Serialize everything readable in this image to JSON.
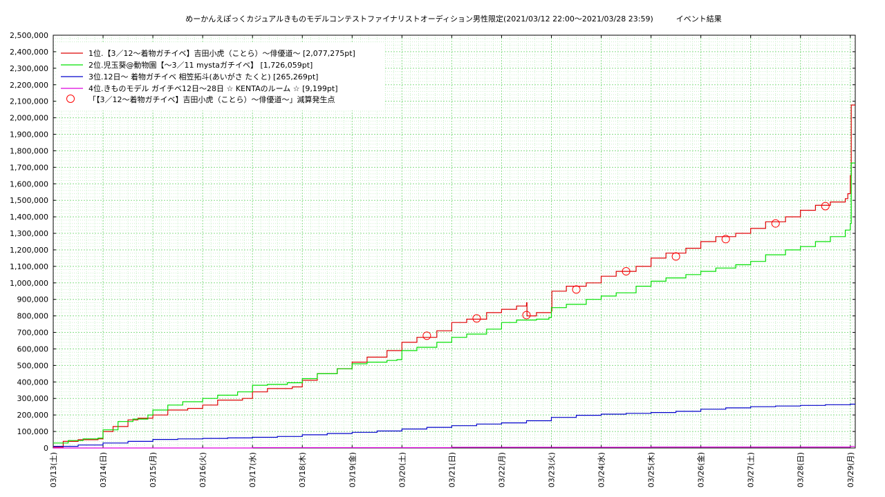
{
  "chart_data": {
    "type": "line",
    "title": "めーかんえぽっくカジュアルきものモデルコンテストファイナリストオーディション男性限定(2021/03/12 22:00〜2021/03/28 23:59)　　　イベント結果",
    "xlabel": "",
    "ylabel": "",
    "x_ticks": [
      "03/13(土)",
      "03/14(日)",
      "03/15(月)",
      "03/16(火)",
      "03/17(水)",
      "03/18(木)",
      "03/19(金)",
      "03/20(土)",
      "03/21(日)",
      "03/22(月)",
      "03/23(火)",
      "03/24(水)",
      "03/25(木)",
      "03/26(金)",
      "03/27(土)",
      "03/28(日)",
      "03/29(月)"
    ],
    "x_range_days": [
      0,
      16.1
    ],
    "ylim": [
      0,
      2500000
    ],
    "y_ticks": [
      "0",
      "100,000",
      "200,000",
      "300,000",
      "400,000",
      "500,000",
      "600,000",
      "700,000",
      "800,000",
      "900,000",
      "1,000,000",
      "1,100,000",
      "1,200,000",
      "1,300,000",
      "1,400,000",
      "1,500,000",
      "1,600,000",
      "1,700,000",
      "1,800,000",
      "1,900,000",
      "2,000,000",
      "2,100,000",
      "2,200,000",
      "2,300,000",
      "2,400,000",
      "2,500,000"
    ],
    "grid": true,
    "legend_position": "top-left",
    "series": [
      {
        "name": "1位.【3／12〜着物ガチイベ】吉田小虎（ことら）〜俳優道〜 [2,077,275pt]",
        "color": "#dd0000",
        "x": [
          0,
          0.2,
          0.5,
          0.9,
          1.0,
          1.2,
          1.5,
          1.7,
          2.0,
          2.3,
          2.7,
          3.0,
          3.3,
          3.8,
          4.0,
          4.3,
          4.8,
          5.0,
          5.3,
          5.7,
          6.0,
          6.3,
          6.7,
          7.0,
          7.3,
          7.7,
          8.0,
          8.3,
          8.7,
          9.0,
          9.3,
          9.5,
          9.51,
          9.7,
          10.0,
          10.01,
          10.3,
          10.7,
          11.0,
          11.3,
          11.7,
          12.0,
          12.3,
          12.7,
          13.0,
          13.3,
          13.7,
          14.0,
          14.3,
          14.7,
          15.0,
          15.3,
          15.6,
          15.9,
          15.95,
          16.0,
          16.02,
          16.1
        ],
        "y": [
          5000,
          40000,
          50000,
          55000,
          100000,
          130000,
          170000,
          180000,
          200000,
          230000,
          240000,
          260000,
          290000,
          300000,
          340000,
          360000,
          370000,
          410000,
          450000,
          480000,
          520000,
          550000,
          590000,
          640000,
          670000,
          710000,
          760000,
          780000,
          820000,
          840000,
          860000,
          880000,
          800000,
          820000,
          830000,
          950000,
          980000,
          1000000,
          1040000,
          1070000,
          1100000,
          1150000,
          1180000,
          1210000,
          1250000,
          1280000,
          1300000,
          1330000,
          1370000,
          1400000,
          1440000,
          1470000,
          1490000,
          1510000,
          1540000,
          1650000,
          2077275,
          2077275
        ]
      },
      {
        "name": "2位.児玉葵@動物園【〜3／11 mystaガチイベ】 [1,726,059pt]",
        "color": "#00e000",
        "x": [
          0,
          0.3,
          0.6,
          0.9,
          1.0,
          1.3,
          1.6,
          1.9,
          2.0,
          2.3,
          2.6,
          3.0,
          3.3,
          3.7,
          4.0,
          4.3,
          4.7,
          5.0,
          5.3,
          5.7,
          6.0,
          6.3,
          6.7,
          6.9,
          7.0,
          7.3,
          7.7,
          8.0,
          8.3,
          8.7,
          9.0,
          9.3,
          9.7,
          9.95,
          10.0,
          10.3,
          10.7,
          11.0,
          11.3,
          11.7,
          12.0,
          12.3,
          12.7,
          13.0,
          13.3,
          13.7,
          14.0,
          14.3,
          14.7,
          15.0,
          15.3,
          15.6,
          15.9,
          16.0,
          16.02,
          16.1
        ],
        "y": [
          30000,
          45000,
          55000,
          60000,
          110000,
          160000,
          175000,
          200000,
          230000,
          260000,
          280000,
          300000,
          320000,
          340000,
          380000,
          385000,
          395000,
          420000,
          450000,
          480000,
          510000,
          520000,
          530000,
          535000,
          590000,
          610000,
          640000,
          670000,
          690000,
          720000,
          760000,
          775000,
          780000,
          790000,
          850000,
          870000,
          900000,
          920000,
          940000,
          980000,
          1010000,
          1030000,
          1050000,
          1070000,
          1090000,
          1110000,
          1130000,
          1170000,
          1200000,
          1220000,
          1250000,
          1280000,
          1320000,
          1360000,
          1726059,
          1726059
        ]
      },
      {
        "name": "3位.12日〜 着物ガチイベ 相笠拓斗(あいがさ たくと) [265,269pt]",
        "color": "#0000cc",
        "x": [
          0,
          0.5,
          1.0,
          1.5,
          2.0,
          2.5,
          3.0,
          3.5,
          4.0,
          4.5,
          5.0,
          5.5,
          6.0,
          6.5,
          7.0,
          7.5,
          8.0,
          8.5,
          9.0,
          9.5,
          10.0,
          10.5,
          11.0,
          11.5,
          12.0,
          12.5,
          13.0,
          13.5,
          14.0,
          14.5,
          15.0,
          15.5,
          16.0,
          16.1
        ],
        "y": [
          10000,
          18000,
          30000,
          40000,
          52000,
          55000,
          58000,
          61000,
          65000,
          70000,
          80000,
          88000,
          95000,
          103000,
          115000,
          125000,
          135000,
          145000,
          152000,
          165000,
          185000,
          198000,
          205000,
          210000,
          215000,
          222000,
          235000,
          243000,
          250000,
          254000,
          258000,
          262000,
          265269,
          265269
        ]
      },
      {
        "name": "4位.きものモデル ガイチベ12日〜28日 ☆ KENTAのルーム ☆ [9,199pt]",
        "color": "#dd00dd",
        "x": [
          0,
          4.0,
          8.0,
          12.0,
          16.0,
          16.1
        ],
        "y": [
          0,
          2000,
          4000,
          6000,
          9199,
          9199
        ]
      }
    ],
    "markers": {
      "name": "「【3／12〜着物ガチイベ】吉田小虎（ことら）〜俳優道〜」減算発生点",
      "color": "#ff0000",
      "points": [
        {
          "x": 7.5,
          "y": 680000
        },
        {
          "x": 8.5,
          "y": 785000
        },
        {
          "x": 9.5,
          "y": 805000
        },
        {
          "x": 10.5,
          "y": 960000
        },
        {
          "x": 11.5,
          "y": 1070000
        },
        {
          "x": 12.5,
          "y": 1160000
        },
        {
          "x": 13.5,
          "y": 1265000
        },
        {
          "x": 14.5,
          "y": 1360000
        },
        {
          "x": 15.5,
          "y": 1465000
        }
      ]
    }
  }
}
